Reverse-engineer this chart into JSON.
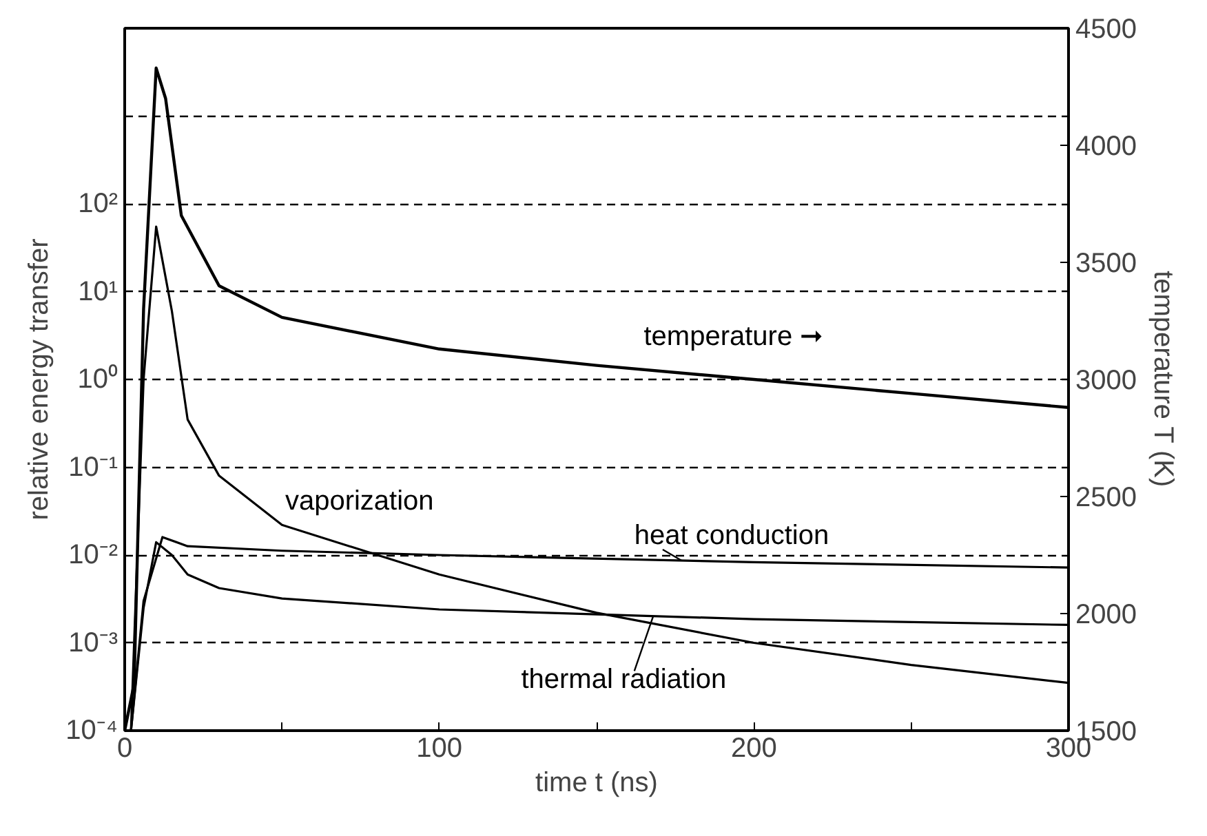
{
  "chart_data": {
    "type": "line",
    "xlabel": "time t (ns)",
    "ylabel": "relative energy transfer",
    "y2label": "temperature T (K)",
    "xlim": [
      0,
      300
    ],
    "xticks": [
      0,
      {
        "value": 50,
        "label": null
      },
      100,
      {
        "value": 150,
        "label": null
      },
      200,
      {
        "value": 250,
        "label": null
      },
      300
    ],
    "log": "y",
    "ylim": [
      0.0001,
      10000
    ],
    "yticks": [
      {
        "value": 0.0001,
        "label": "10⁻⁴"
      },
      {
        "value": 0.001,
        "label": "10⁻³"
      },
      {
        "value": 0.01,
        "label": "10⁻²"
      },
      {
        "value": 0.1,
        "label": "10⁻¹"
      },
      {
        "value": 1,
        "label": "10⁰"
      },
      {
        "value": 10,
        "label": "10¹"
      },
      {
        "value": 100,
        "label": "10²"
      },
      {
        "value": 1000,
        "label": null
      }
    ],
    "y2lim": [
      1500,
      4500
    ],
    "y2ticks": [
      1500,
      2000,
      2500,
      3000,
      3500,
      4000,
      4500
    ],
    "grid": "y",
    "marker": "none",
    "line_style": "solid",
    "series": [
      {
        "name": "temperature ➞",
        "color": "#000000",
        "axis": "y2",
        "x": [
          0,
          3,
          6,
          10,
          13,
          18,
          30,
          50,
          100,
          150,
          200,
          250,
          300
        ],
        "values": [
          1500,
          1700,
          3300,
          4330,
          4200,
          3700,
          3400,
          3265,
          3130,
          3060,
          3000,
          2940,
          2880
        ]
      },
      {
        "name": "vaporization",
        "color": "#000000",
        "x": [
          2,
          6,
          10,
          15,
          20,
          30,
          50,
          100,
          150,
          200,
          250,
          300
        ],
        "values": [
          0.0001,
          1,
          55,
          6,
          0.35,
          0.08,
          0.022,
          0.006,
          0.0022,
          0.001,
          0.00056,
          0.00035
        ]
      },
      {
        "name": "heat conduction",
        "color": "#000000",
        "x": [
          2,
          6,
          12,
          20,
          50,
          100,
          200,
          300
        ],
        "values": [
          0.0001,
          0.003,
          0.016,
          0.0126,
          0.0112,
          0.01,
          0.0083,
          0.0072
        ]
      },
      {
        "name": "thermal radiation",
        "color": "#000000",
        "x": [
          2,
          6,
          10,
          15,
          20,
          30,
          50,
          100,
          200,
          300
        ],
        "values": [
          0.0001,
          0.0025,
          0.014,
          0.01,
          0.006,
          0.0042,
          0.0032,
          0.0024,
          0.00186,
          0.0016
        ]
      }
    ]
  }
}
